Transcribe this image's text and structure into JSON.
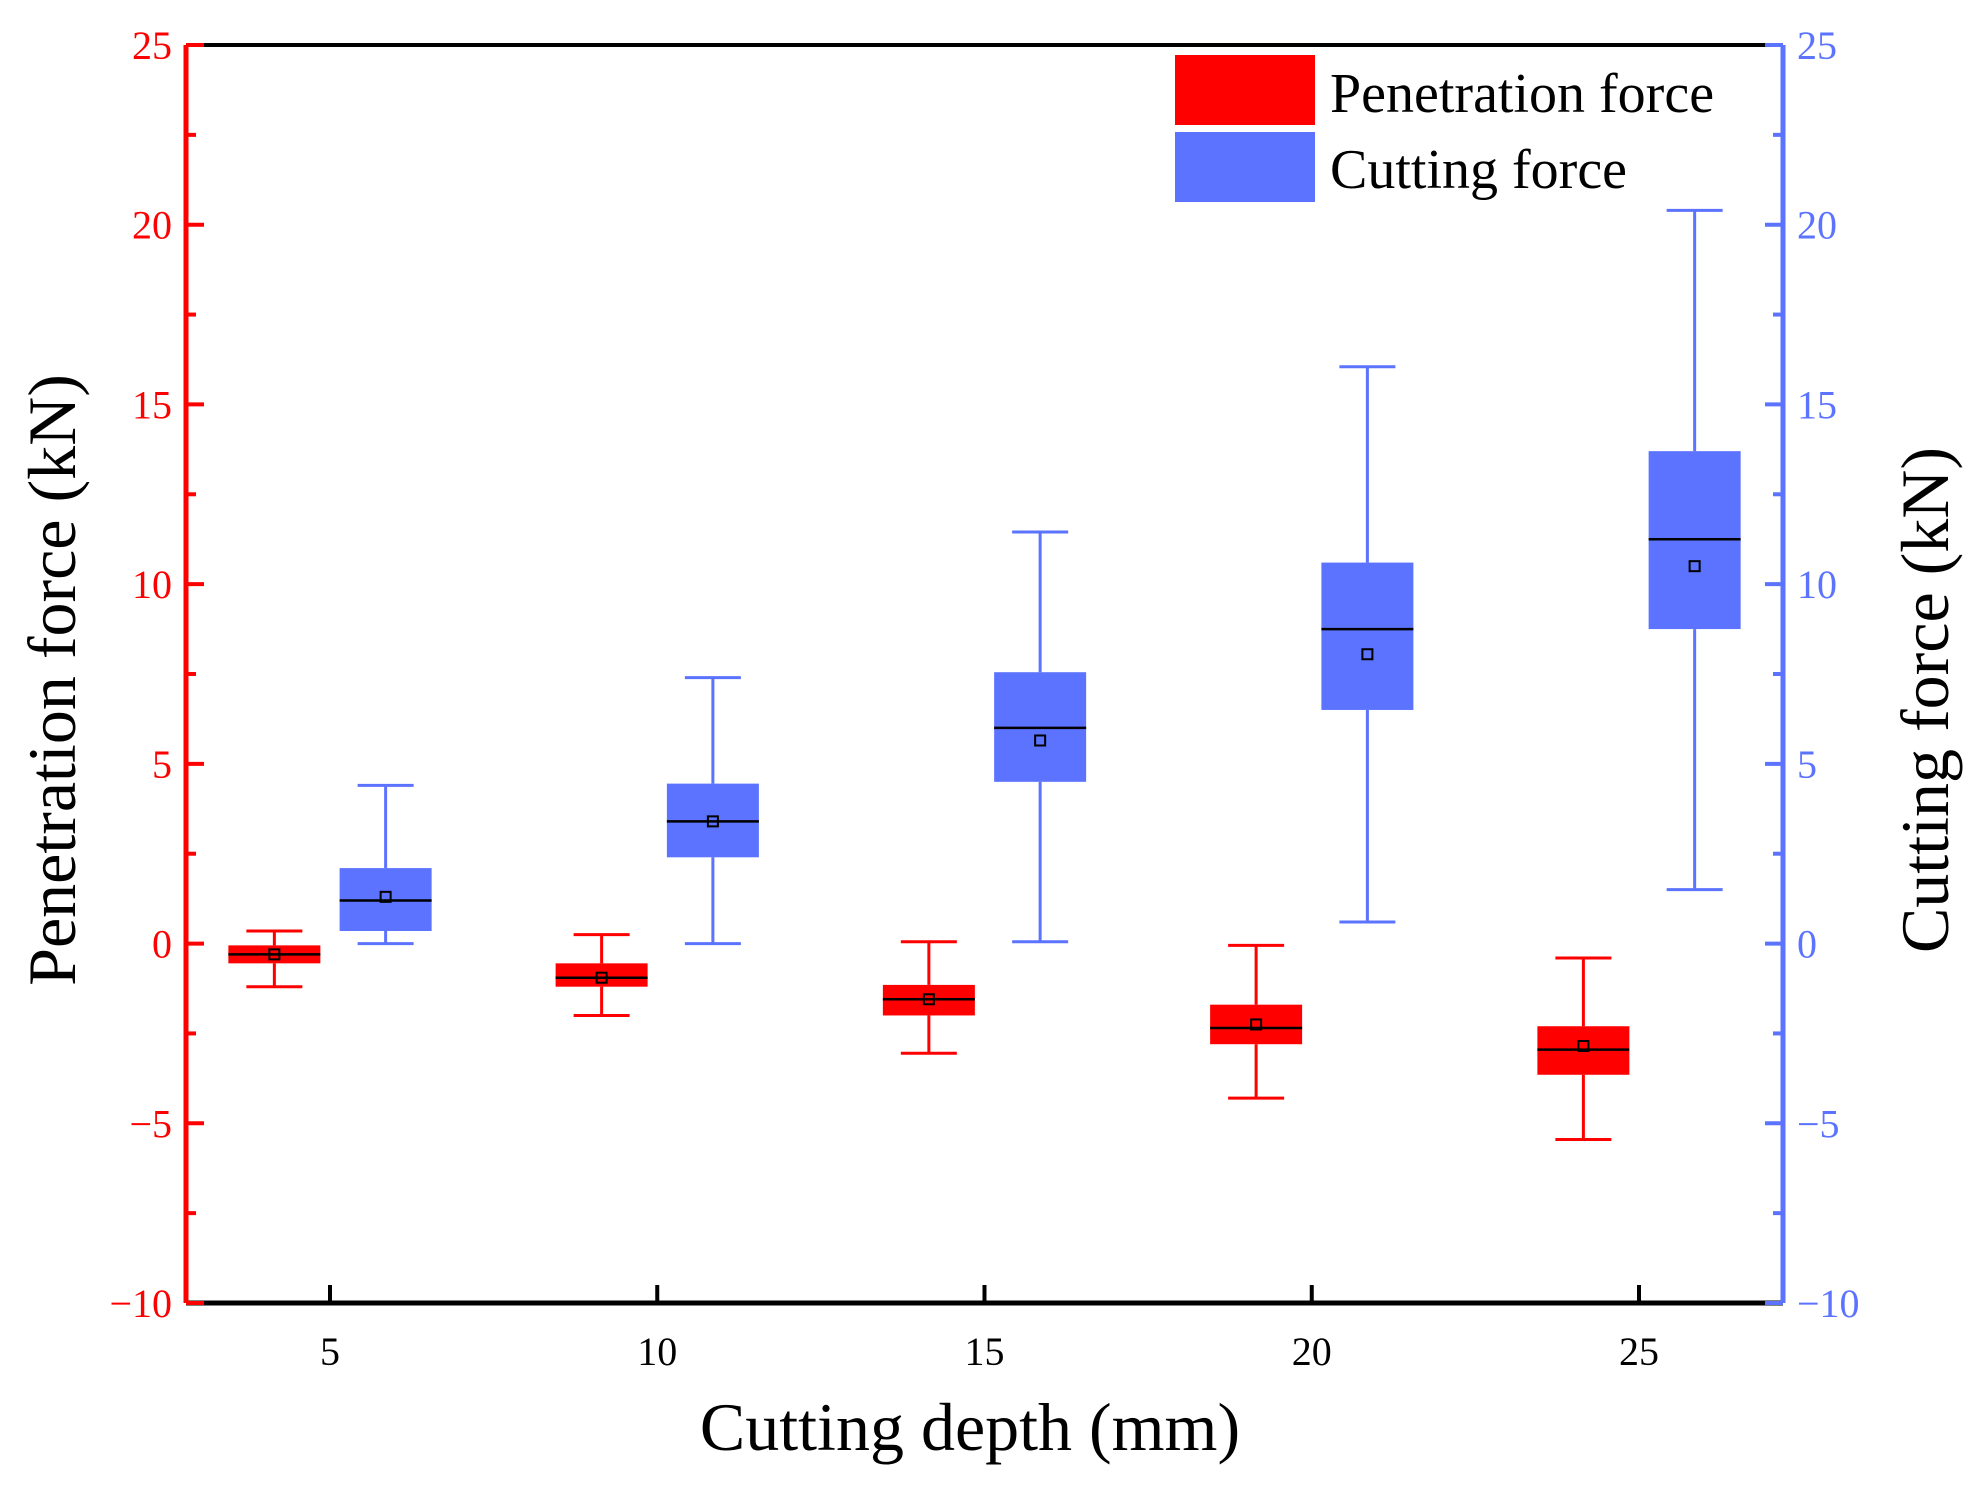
{
  "colors": {
    "penetration": "#ff0000",
    "cutting": "#5b73ff",
    "frame": "#000000"
  },
  "chart_data": {
    "type": "box",
    "xlabel": "Cutting depth (mm)",
    "ylabel_left": "Penetration force (kN)",
    "ylabel_right": "Cutting force  (kN)",
    "xlim": [
      2.8,
      27.2
    ],
    "ylim": [
      -10,
      25
    ],
    "x_ticks": [
      5,
      10,
      15,
      20,
      25
    ],
    "y_ticks": [
      -10,
      -5,
      0,
      5,
      10,
      15,
      20,
      25
    ],
    "y_tick_labels": [
      "−10",
      "−5",
      "0",
      "5",
      "10",
      "15",
      "20",
      "25"
    ],
    "legend": {
      "position": "top-right",
      "entries": [
        "Penetration force",
        "Cutting force"
      ]
    },
    "series": [
      {
        "name": "Penetration force",
        "axis": "left",
        "offset": -0.85,
        "boxes": [
          {
            "x": 5,
            "whisker_low": -1.2,
            "q1": -0.55,
            "median": -0.3,
            "q3": -0.05,
            "whisker_high": 0.35,
            "mean": -0.3
          },
          {
            "x": 10,
            "whisker_low": -2.0,
            "q1": -1.2,
            "median": -0.95,
            "q3": -0.55,
            "whisker_high": 0.25,
            "mean": -0.95
          },
          {
            "x": 15,
            "whisker_low": -3.05,
            "q1": -2.0,
            "median": -1.55,
            "q3": -1.15,
            "whisker_high": 0.05,
            "mean": -1.55
          },
          {
            "x": 20,
            "whisker_low": -4.3,
            "q1": -2.8,
            "median": -2.35,
            "q3": -1.7,
            "whisker_high": -0.05,
            "mean": -2.25
          },
          {
            "x": 25,
            "whisker_low": -5.45,
            "q1": -3.65,
            "median": -2.95,
            "q3": -2.3,
            "whisker_high": -0.4,
            "mean": -2.85
          }
        ]
      },
      {
        "name": "Cutting force",
        "axis": "right",
        "offset": 0.85,
        "boxes": [
          {
            "x": 5,
            "whisker_low": 0.0,
            "q1": 0.35,
            "median": 1.2,
            "q3": 2.1,
            "whisker_high": 4.4,
            "mean": 1.3
          },
          {
            "x": 10,
            "whisker_low": 0.0,
            "q1": 2.4,
            "median": 3.4,
            "q3": 4.45,
            "whisker_high": 7.4,
            "mean": 3.4
          },
          {
            "x": 15,
            "whisker_low": 0.05,
            "q1": 4.5,
            "median": 6.0,
            "q3": 7.55,
            "whisker_high": 11.45,
            "mean": 5.65
          },
          {
            "x": 20,
            "whisker_low": 0.6,
            "q1": 6.5,
            "median": 8.75,
            "q3": 10.6,
            "whisker_high": 16.05,
            "mean": 8.05
          },
          {
            "x": 25,
            "whisker_low": 1.5,
            "q1": 8.75,
            "median": 11.25,
            "q3": 13.7,
            "whisker_high": 20.4,
            "mean": 10.5
          }
        ]
      }
    ]
  }
}
